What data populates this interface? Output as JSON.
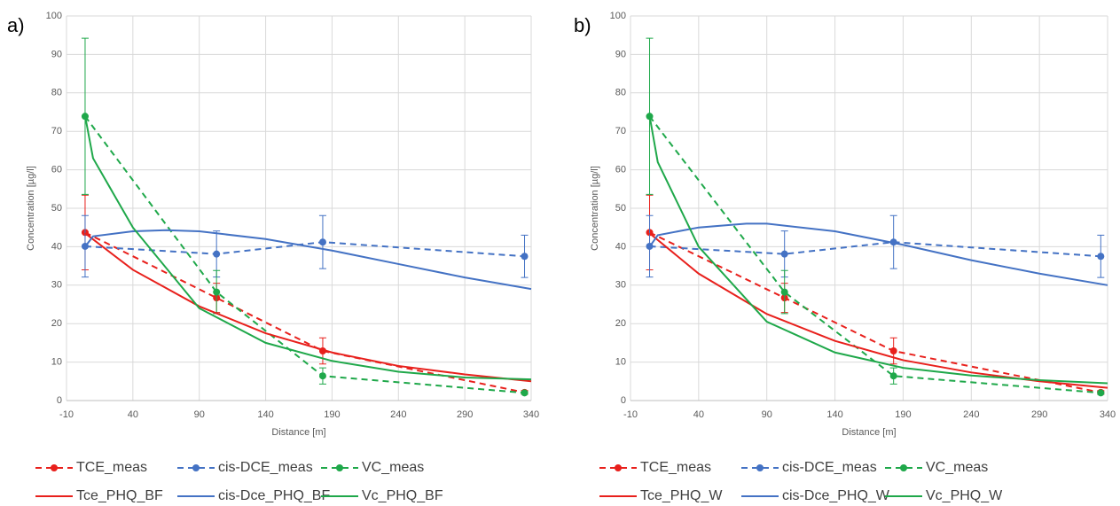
{
  "chart_data": [
    {
      "type": "line",
      "panel_label": "a)",
      "xlabel": "Distance [m]",
      "ylabel": "Concentration [µg/l]",
      "xlim": [
        -10,
        340
      ],
      "ylim": [
        0,
        100
      ],
      "xticks": [
        -10,
        40,
        90,
        140,
        190,
        240,
        290,
        340
      ],
      "yticks": [
        0,
        10,
        20,
        30,
        40,
        50,
        60,
        70,
        80,
        90,
        100
      ],
      "grid": true,
      "series": [
        {
          "name": "TCE_meas",
          "color": "#e8201c",
          "dashed": true,
          "x": [
            4,
            103,
            183,
            335
          ],
          "values": [
            43.7,
            26.7,
            12.9,
            2.1
          ],
          "errors": [
            9.7,
            3.8,
            3.4,
            0.5
          ]
        },
        {
          "name": "cis-DCE_meas",
          "color": "#4472c4",
          "dashed": true,
          "x": [
            4,
            103,
            183,
            335
          ],
          "values": [
            40.1,
            38.1,
            41.2,
            37.5
          ],
          "errors": [
            8,
            6,
            6.9,
            5.5
          ]
        },
        {
          "name": "VC_meas",
          "color": "#1fa84a",
          "dashed": true,
          "x": [
            4,
            103,
            183,
            335
          ],
          "values": [
            73.9,
            28.2,
            6.4,
            2.0
          ],
          "errors": [
            20.3,
            5.6,
            2.1,
            0.3
          ]
        },
        {
          "name": "Tce_PHQ_BF",
          "color": "#e8201c",
          "dashed": false,
          "x": [
            4,
            40,
            90,
            140,
            190,
            240,
            290,
            340
          ],
          "values": [
            43.5,
            34,
            24.5,
            17.5,
            12.5,
            9,
            6.8,
            5
          ]
        },
        {
          "name": "cis-Dce_PHQ_BF",
          "color": "#4472c4",
          "dashed": false,
          "x": [
            4,
            10,
            40,
            65,
            90,
            140,
            190,
            240,
            290,
            340
          ],
          "values": [
            40,
            42.7,
            44,
            44.3,
            44,
            42,
            39,
            35.5,
            32,
            29
          ]
        },
        {
          "name": "Vc_PHQ_BF",
          "color": "#1fa84a",
          "dashed": false,
          "x": [
            4,
            10,
            40,
            90,
            140,
            190,
            240,
            290,
            340
          ],
          "values": [
            74,
            63,
            45,
            24,
            15,
            10.3,
            7.5,
            6,
            5.5
          ]
        }
      ]
    },
    {
      "type": "line",
      "panel_label": "b)",
      "xlabel": "Distance [m]",
      "ylabel": "Concentration [µg/l]",
      "xlim": [
        -10,
        340
      ],
      "ylim": [
        0,
        100
      ],
      "xticks": [
        -10,
        40,
        90,
        140,
        190,
        240,
        290,
        340
      ],
      "yticks": [
        0,
        10,
        20,
        30,
        40,
        50,
        60,
        70,
        80,
        90,
        100
      ],
      "grid": true,
      "series": [
        {
          "name": "TCE_meas",
          "color": "#e8201c",
          "dashed": true,
          "x": [
            4,
            103,
            183,
            335
          ],
          "values": [
            43.7,
            26.7,
            12.9,
            2.1
          ],
          "errors": [
            9.7,
            3.8,
            3.4,
            0.5
          ]
        },
        {
          "name": "cis-DCE_meas",
          "color": "#4472c4",
          "dashed": true,
          "x": [
            4,
            103,
            183,
            335
          ],
          "values": [
            40.1,
            38.1,
            41.2,
            37.5
          ],
          "errors": [
            8,
            6,
            6.9,
            5.5
          ]
        },
        {
          "name": "VC_meas",
          "color": "#1fa84a",
          "dashed": true,
          "x": [
            4,
            103,
            183,
            335
          ],
          "values": [
            73.9,
            28.2,
            6.4,
            2.0
          ],
          "errors": [
            20.3,
            5.6,
            2.1,
            0.3
          ]
        },
        {
          "name": "Tce_PHQ_W",
          "color": "#e8201c",
          "dashed": false,
          "x": [
            4,
            40,
            90,
            140,
            190,
            240,
            290,
            340
          ],
          "values": [
            43.5,
            33,
            22.5,
            15.5,
            10.5,
            7.3,
            5,
            3.3
          ]
        },
        {
          "name": "cis-Dce_PHQ_W",
          "color": "#4472c4",
          "dashed": false,
          "x": [
            4,
            10,
            40,
            75,
            90,
            140,
            190,
            240,
            290,
            340
          ],
          "values": [
            40,
            43,
            45,
            46,
            46,
            44,
            40.5,
            36.5,
            33,
            30
          ]
        },
        {
          "name": "Vc_PHQ_W",
          "color": "#1fa84a",
          "dashed": false,
          "x": [
            4,
            10,
            40,
            90,
            140,
            190,
            240,
            290,
            340
          ],
          "values": [
            74,
            62,
            40,
            20.5,
            12.5,
            8.5,
            6.5,
            5.3,
            4.5
          ]
        }
      ]
    }
  ]
}
